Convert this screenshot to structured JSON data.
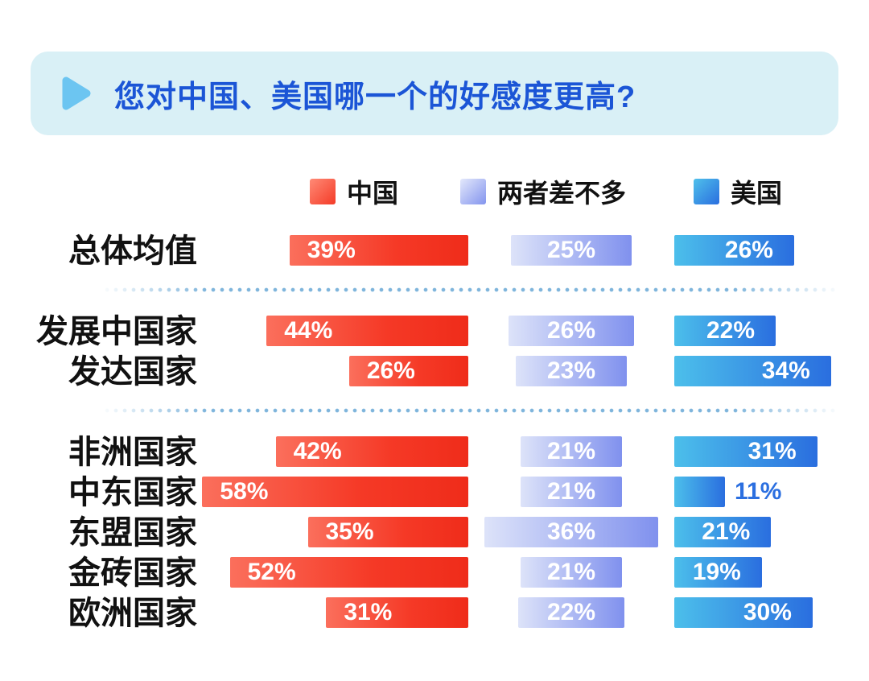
{
  "title": {
    "text": "您对中国、美国哪一个的好感度更高?",
    "icon": "play-triangle-icon"
  },
  "legend": [
    {
      "label": "中国",
      "key": "china"
    },
    {
      "label": "两者差不多",
      "key": "similar"
    },
    {
      "label": "美国",
      "key": "usa"
    }
  ],
  "colors": {
    "banner_bg": "#d9f0f6",
    "title_text": "#1b55d6",
    "triangle_icon": "#6cc5f1",
    "china_gradient_from": "#fb6f5c",
    "china_gradient_to": "#ef2c1a",
    "similar_gradient_from": "#dde3f9",
    "similar_gradient_to": "#8091ee",
    "usa_gradient_from": "#4cbfeb",
    "usa_gradient_to": "#2a6edf",
    "bar_value_text": "#ffffff",
    "outside_value_text": "#2b6fe0",
    "row_label_text": "#111111",
    "separator_dots": "#7fb5dc"
  },
  "chart_data": {
    "type": "bar",
    "orientation": "horizontal",
    "unit": "%",
    "value_suffix": "%",
    "series": [
      "中国",
      "两者差不多",
      "美国"
    ],
    "legend_position": "top",
    "axis_range": [
      0,
      60
    ],
    "grid": false,
    "sections": [
      {
        "rows": [
          {
            "label": "总体均值",
            "values": [
              39,
              25,
              26
            ],
            "display": [
              "39%",
              "25%",
              "26%"
            ]
          }
        ]
      },
      {
        "rows": [
          {
            "label": "发展中国家",
            "values": [
              44,
              26,
              22
            ],
            "display": [
              "44%",
              "26%",
              "22%"
            ]
          },
          {
            "label": "发达国家",
            "values": [
              26,
              23,
              34
            ],
            "display": [
              "26%",
              "23%",
              "34%"
            ]
          }
        ]
      },
      {
        "rows": [
          {
            "label": "非洲国家",
            "values": [
              42,
              21,
              31
            ],
            "display": [
              "42%",
              "21%",
              "31%"
            ]
          },
          {
            "label": "中东国家",
            "values": [
              58,
              21,
              11
            ],
            "display": [
              "58%",
              "21%",
              "11%"
            ]
          },
          {
            "label": "东盟国家",
            "values": [
              35,
              36,
              21
            ],
            "display": [
              "35%",
              "36%",
              "21%"
            ]
          },
          {
            "label": "金砖国家",
            "values": [
              52,
              21,
              19
            ],
            "display": [
              "52%",
              "21%",
              "19%"
            ]
          },
          {
            "label": "欧洲国家",
            "values": [
              31,
              22,
              30
            ],
            "display": [
              "31%",
              "22%",
              "30%"
            ]
          }
        ]
      }
    ]
  }
}
